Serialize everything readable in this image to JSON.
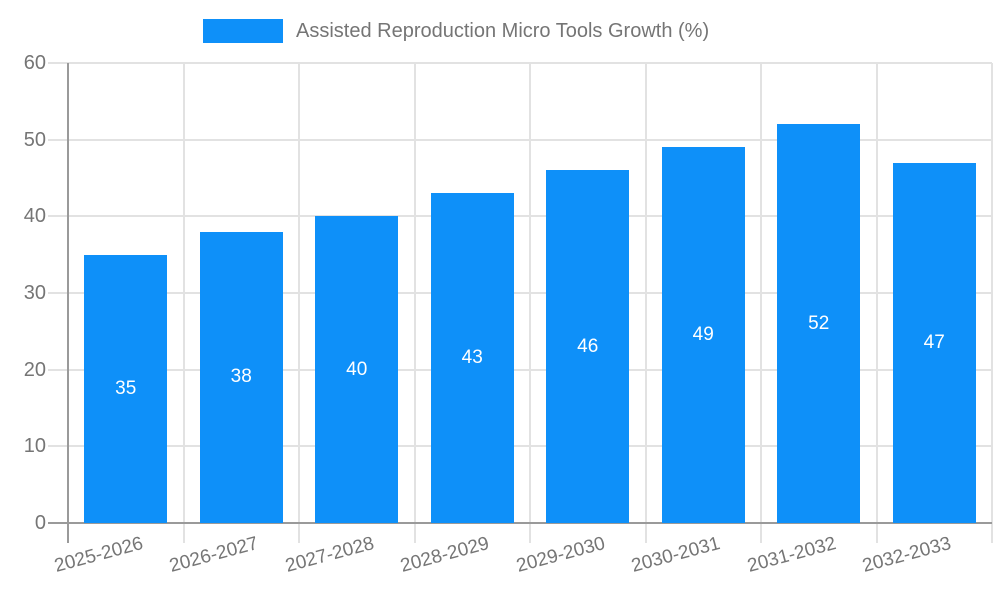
{
  "chart_data": {
    "type": "bar",
    "title": "Assisted Reproduction Micro Tools Growth (%)",
    "categories": [
      "2025-2026",
      "2026-2027",
      "2027-2028",
      "2028-2029",
      "2029-2030",
      "2030-2031",
      "2031-2032",
      "2032-2033"
    ],
    "values": [
      35,
      38,
      40,
      43,
      46,
      49,
      52,
      47
    ],
    "xlabel": "",
    "ylabel": "",
    "ylim": [
      0,
      60
    ],
    "yticks": [
      0,
      10,
      20,
      30,
      40,
      50,
      60
    ],
    "grid": "on",
    "legend_position": "top-center",
    "value_labels": "inside-center",
    "colors": {
      "bar": "#0E90F9",
      "value_label_text": "#ffffff",
      "axis_line": "#9a9a9a",
      "grid_line": "#e2e2e2",
      "tick_text": "#757575",
      "legend_text": "#757575",
      "background": "#ffffff"
    }
  }
}
